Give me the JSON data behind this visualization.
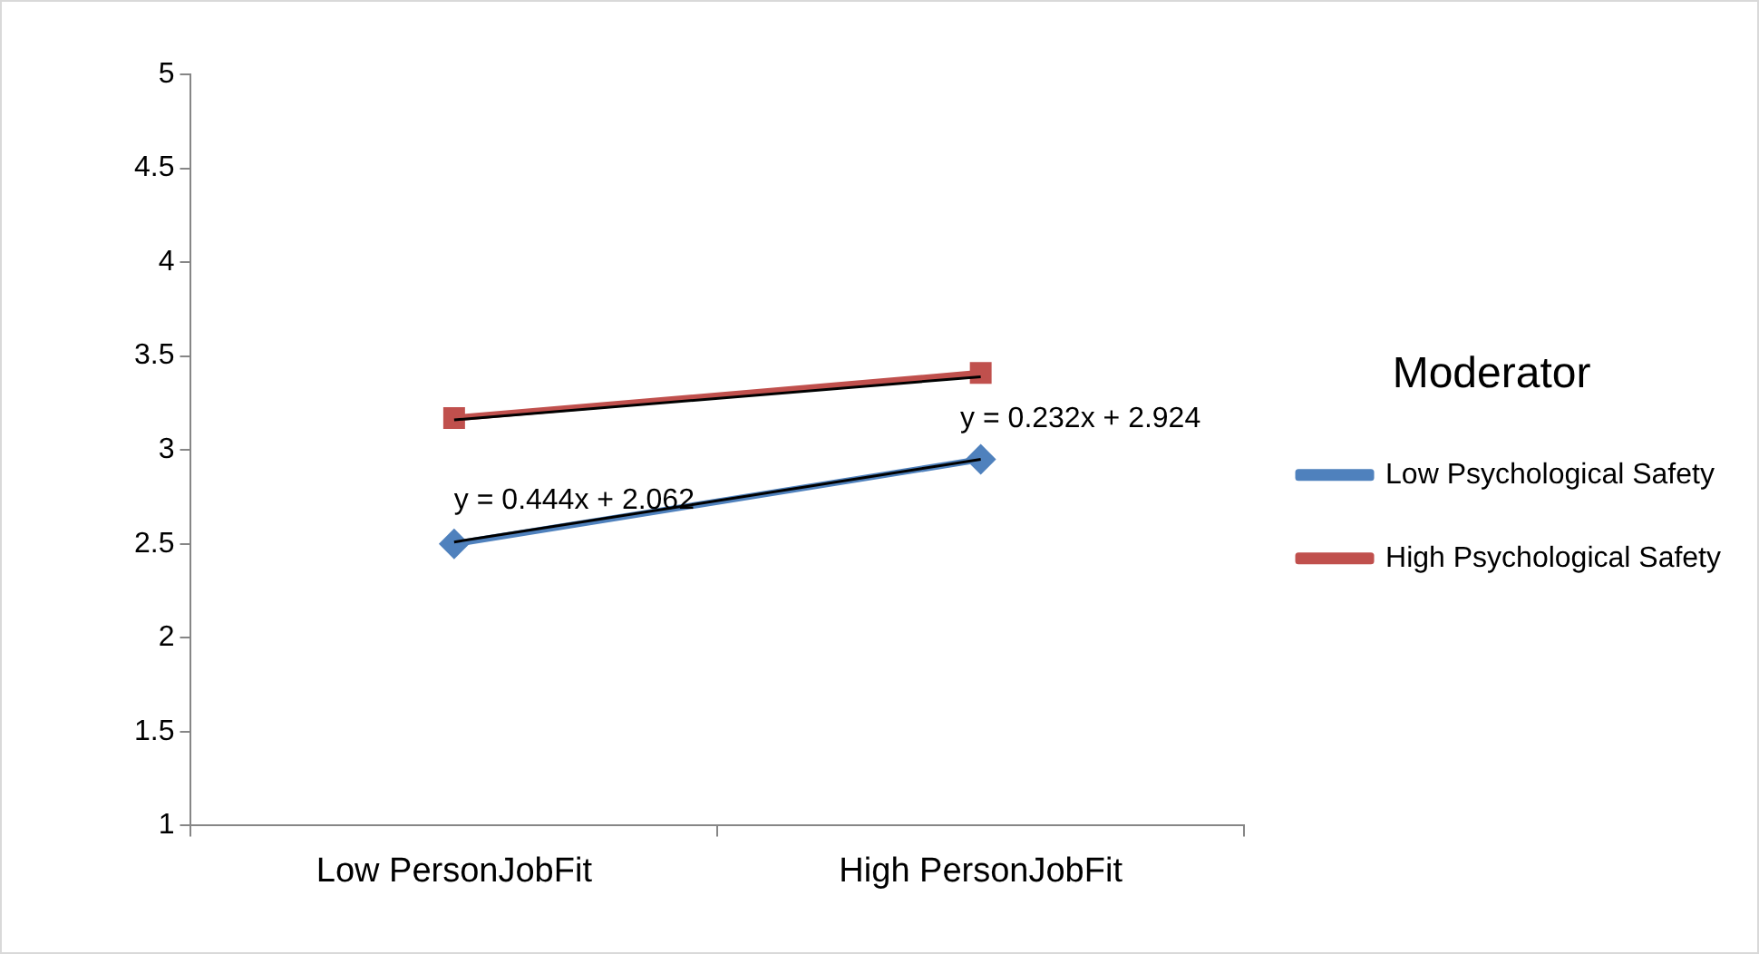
{
  "chart_data": {
    "type": "line",
    "categories": [
      "Low PersonJobFit",
      "High PersonJobFit"
    ],
    "series": [
      {
        "name": "Low Psychological Safety",
        "color": "#4f81bd",
        "values": [
          2.5,
          2.95
        ],
        "marker": "diamond"
      },
      {
        "name": "High Psychological Safety",
        "color": "#c0504d",
        "values": [
          3.17,
          3.41
        ],
        "marker": "square"
      },
      {
        "type": "line",
        "color": "#000000",
        "x": [
          "Low PersonJobFit",
          "High PersonJobFit"
        ],
        "values": [
          2.51,
          2.95
        ],
        "marker": "none"
      },
      {
        "type": "line",
        "color": "#000000",
        "x": [
          "Low PersonJobFit",
          "High PersonJobFit"
        ],
        "values": [
          3.16,
          3.39
        ],
        "marker": "none"
      }
    ],
    "ylim": [
      1,
      5
    ],
    "yticks": [
      1,
      1.5,
      2,
      2.5,
      3,
      3.5,
      4,
      4.5,
      5
    ],
    "grid": false,
    "legend": "right",
    "legend_title": "Moderator",
    "annotations": [
      "y = 0.444x + 2.062",
      "y = 0.232x + 2.924"
    ]
  }
}
